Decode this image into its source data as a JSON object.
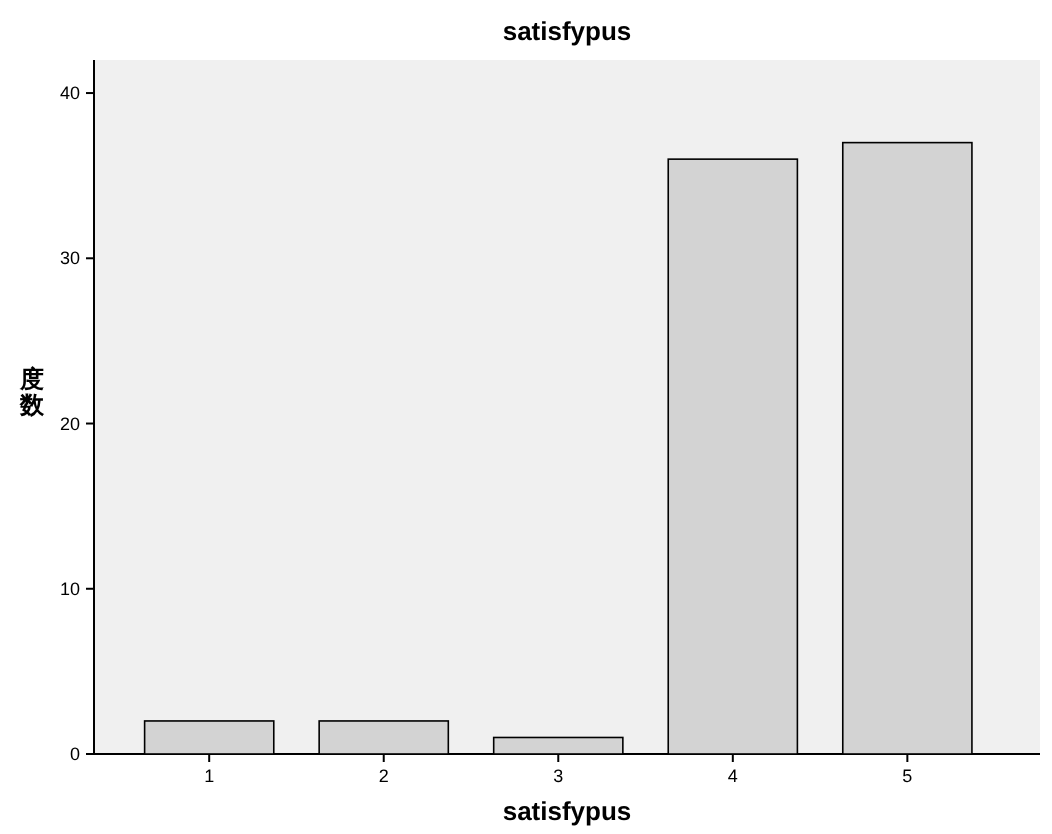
{
  "chart_data": {
    "type": "bar",
    "title": "satisfypus",
    "xlabel": "satisfypus",
    "ylabel": "度数",
    "categories": [
      "1",
      "2",
      "3",
      "4",
      "5"
    ],
    "values": [
      2,
      2,
      1,
      36,
      37
    ],
    "color": "#d3d3d3",
    "ylim": [
      0,
      42
    ],
    "yticks": [
      0,
      10,
      20,
      30,
      40
    ]
  }
}
